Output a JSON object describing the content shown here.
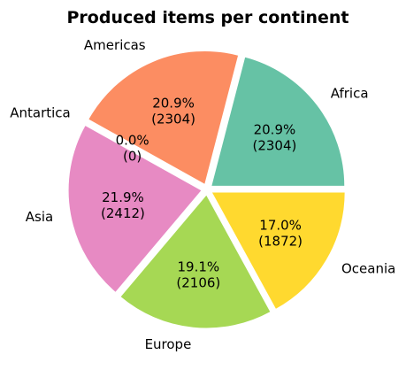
{
  "chart_data": {
    "type": "pie",
    "title": "Produced items per continent",
    "slices": [
      {
        "label": "Africa",
        "value": 2304,
        "pct_text": "20.9%",
        "val_text": "(2304)",
        "color": "#66c2a5"
      },
      {
        "label": "Americas",
        "value": 2304,
        "pct_text": "20.9%",
        "val_text": "(2304)",
        "color": "#fc8d62"
      },
      {
        "label": "Antartica",
        "value": 0,
        "pct_text": "0.0%",
        "val_text": "(0)",
        "color": "#8da0cb"
      },
      {
        "label": "Asia",
        "value": 2412,
        "pct_text": "21.9%",
        "val_text": "(2412)",
        "color": "#e78ac3"
      },
      {
        "label": "Europe",
        "value": 2106,
        "pct_text": "19.1%",
        "val_text": "(2106)",
        "color": "#a6d854"
      },
      {
        "label": "Oceania",
        "value": 1872,
        "pct_text": "17.0%",
        "val_text": "(1872)",
        "color": "#ffd92f"
      }
    ],
    "start_angle_deg": 0,
    "direction": "counterclockwise",
    "exploded": true
  }
}
